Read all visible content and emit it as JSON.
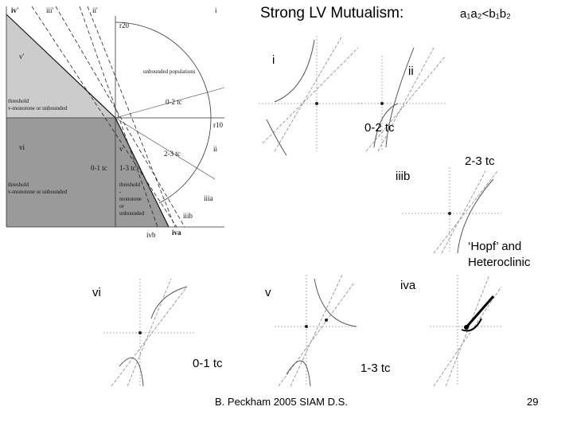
{
  "title": {
    "text": "Strong LV Mutualism:",
    "condition": "a₁a₂<b₁b₂"
  },
  "panels": {
    "i": "i",
    "ii": "ii",
    "t02": "0-2 tc",
    "t23": "2-3 tc",
    "iiib": "iiib",
    "hopf": [
      "‘Hopf’ and",
      "Heteroclinic"
    ],
    "iva": "iva",
    "v": "v",
    "vi": "vi",
    "t01": "0-1 tc",
    "t13": "1-3 tc"
  },
  "diagram": {
    "labels": [
      "iv'",
      "iii'",
      "ii'",
      "i",
      "r20",
      "v'",
      "unbounded populations",
      "threshold",
      "v-monotone or unbounded",
      "0-2 tc",
      "r10",
      "vi",
      "v",
      "ii",
      "2-3 tc",
      "0-1 tc",
      "1-3 tc",
      "threshold",
      "v-monotone or unbounded",
      "threshold",
      "-",
      "monotone",
      "or",
      "unbounded",
      "iiia",
      "iiib",
      "iva",
      "ivb"
    ]
  },
  "footer": {
    "credit": "B. Peckham 2005 SIAM D.S.",
    "page": "29"
  }
}
